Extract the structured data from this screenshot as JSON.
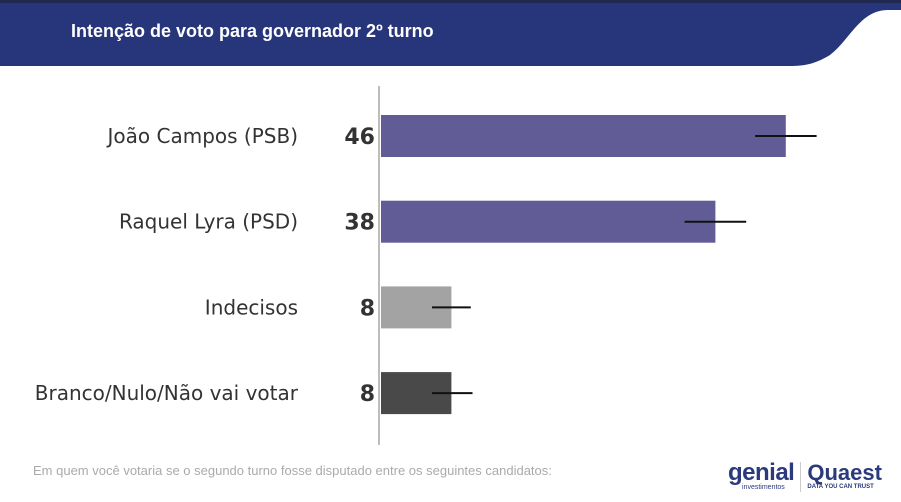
{
  "header": {
    "title": "Intenção de voto para governador 2º turno"
  },
  "footnote": "Em quem você votaria se o segundo turno fosse disputado entre os seguintes candidatos:",
  "logos": {
    "genial": "genial",
    "genial_sub": "investimentos",
    "quaest": "Quaest",
    "quaest_sub": "DATA YOU CAN TRUST"
  },
  "colors": {
    "header": "#27357a",
    "candidate_bar": "#625c96",
    "undecided_bar": "#a3a3a3",
    "blank_bar": "#494949"
  },
  "chart_data": {
    "type": "bar",
    "orientation": "horizontal",
    "title": "Intenção de voto para governador 2º turno",
    "categories": [
      "João Campos (PSB)",
      "Raquel Lyra (PSD)",
      "Indecisos",
      "Branco/Nulo/Não vai votar"
    ],
    "values": [
      46,
      38,
      8,
      8
    ],
    "error_ranges": [
      [
        42.5,
        49.5
      ],
      [
        34.5,
        41.5
      ],
      [
        5.8,
        10.2
      ],
      [
        5.8,
        10.4
      ]
    ],
    "bar_colors": [
      "#625c96",
      "#625c96",
      "#a3a3a3",
      "#494949"
    ],
    "xlim": [
      0,
      58
    ],
    "grid": false,
    "data_labels": true
  }
}
